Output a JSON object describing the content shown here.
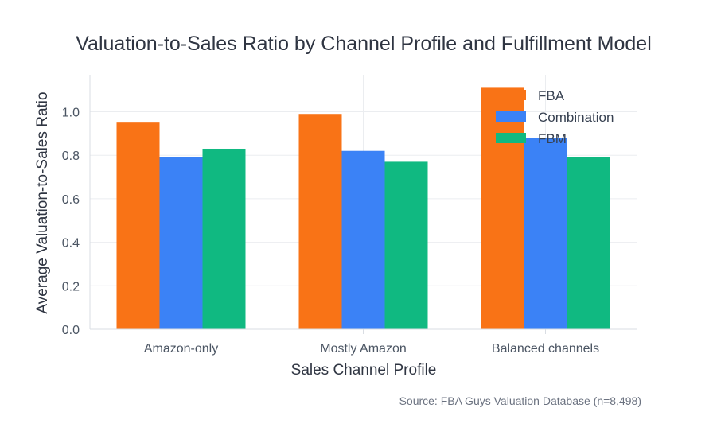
{
  "chart_data": {
    "type": "bar",
    "title": "Valuation-to-Sales Ratio by Channel Profile and Fulfillment Model",
    "xlabel": "Sales Channel Profile",
    "ylabel": "Average Valuation-to-Sales Ratio",
    "categories": [
      "Amazon-only",
      "Mostly Amazon",
      "Balanced channels"
    ],
    "series": [
      {
        "name": "FBA",
        "color": "#f97316",
        "values": [
          0.95,
          0.99,
          1.11
        ]
      },
      {
        "name": "Combination",
        "color": "#3b82f6",
        "values": [
          0.79,
          0.82,
          0.88
        ]
      },
      {
        "name": "FBM",
        "color": "#10b981",
        "values": [
          0.83,
          0.77,
          0.79
        ]
      }
    ],
    "ylim": [
      0,
      1.17
    ],
    "yticks": [
      "0.0",
      "0.2",
      "0.4",
      "0.6",
      "0.8",
      "1.0"
    ],
    "grid": true,
    "legend_position": "top-right",
    "source": "Source: FBA Guys Valuation Database (n=8,498)"
  }
}
